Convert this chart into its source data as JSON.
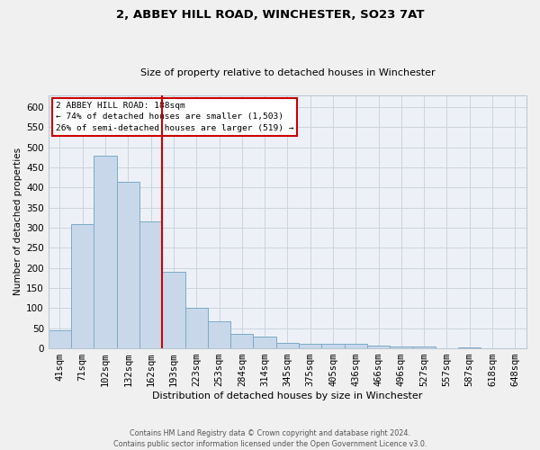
{
  "title1": "2, ABBEY HILL ROAD, WINCHESTER, SO23 7AT",
  "title2": "Size of property relative to detached houses in Winchester",
  "xlabel": "Distribution of detached houses by size in Winchester",
  "ylabel": "Number of detached properties",
  "annotation_line1": "2 ABBEY HILL ROAD: 188sqm",
  "annotation_line2": "← 74% of detached houses are smaller (1,503)",
  "annotation_line3": "26% of semi-detached houses are larger (519) →",
  "footer1": "Contains HM Land Registry data © Crown copyright and database right 2024.",
  "footer2": "Contains public sector information licensed under the Open Government Licence v3.0.",
  "bar_color": "#c8d8ea",
  "bar_edge_color": "#7aaac8",
  "grid_color": "#ccd4de",
  "vline_color": "#cc0000",
  "annotation_box_edgecolor": "#cc0000",
  "fig_bg_color": "#f0f0f0",
  "ax_bg_color": "#edf1f7",
  "categories": [
    "41sqm",
    "71sqm",
    "102sqm",
    "132sqm",
    "162sqm",
    "193sqm",
    "223sqm",
    "253sqm",
    "284sqm",
    "314sqm",
    "345sqm",
    "375sqm",
    "405sqm",
    "436sqm",
    "466sqm",
    "496sqm",
    "527sqm",
    "557sqm",
    "587sqm",
    "618sqm",
    "648sqm"
  ],
  "values": [
    45,
    310,
    480,
    415,
    315,
    190,
    102,
    68,
    37,
    30,
    14,
    11,
    12,
    12,
    8,
    4,
    4,
    1,
    3,
    1,
    1
  ],
  "vline_index": 4.5,
  "ylim_max": 630,
  "ytick_step": 50
}
